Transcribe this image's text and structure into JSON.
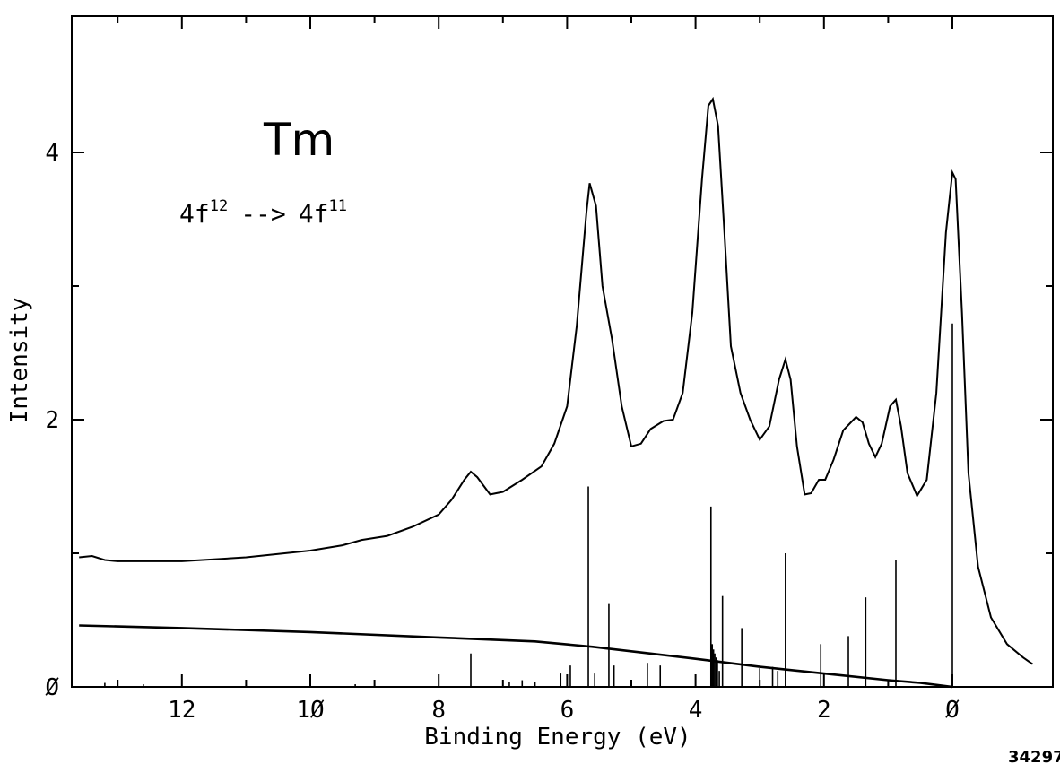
{
  "chart_data": {
    "type": "line",
    "xlabel": "Binding Energy (eV)",
    "ylabel": "Intensity",
    "xlim": [
      13.6,
      -1.4
    ],
    "ylim": [
      0,
      5.0
    ],
    "x_reversed": true,
    "x_ticks": [
      12,
      10,
      8,
      6,
      4,
      2,
      0
    ],
    "x_tick_labels": [
      "12",
      "1Ø",
      "8",
      "6",
      "4",
      "2",
      "Ø"
    ],
    "y_ticks": [
      0,
      2,
      4
    ],
    "y_tick_labels": [
      "Ø",
      "2",
      "4"
    ],
    "annotations": {
      "element": "Tm",
      "transition_from": "4f",
      "transition_from_sup": "12",
      "arrow": "-->",
      "transition_to": "4f",
      "transition_to_sup": "11"
    },
    "figure_number": "34297",
    "series": [
      {
        "kind": "spectrum",
        "points": [
          [
            13.6,
            0.97
          ],
          [
            13.4,
            0.98
          ],
          [
            13.2,
            0.95
          ],
          [
            13.0,
            0.94
          ],
          [
            12.0,
            0.94
          ],
          [
            11.0,
            0.97
          ],
          [
            10.0,
            1.02
          ],
          [
            9.5,
            1.06
          ],
          [
            9.2,
            1.1
          ],
          [
            8.8,
            1.13
          ],
          [
            8.4,
            1.2
          ],
          [
            8.0,
            1.29
          ],
          [
            7.8,
            1.4
          ],
          [
            7.6,
            1.55
          ],
          [
            7.5,
            1.61
          ],
          [
            7.4,
            1.57
          ],
          [
            7.2,
            1.44
          ],
          [
            7.0,
            1.46
          ],
          [
            6.7,
            1.55
          ],
          [
            6.4,
            1.65
          ],
          [
            6.2,
            1.82
          ],
          [
            6.0,
            2.1
          ],
          [
            5.85,
            2.7
          ],
          [
            5.7,
            3.55
          ],
          [
            5.65,
            3.77
          ],
          [
            5.55,
            3.6
          ],
          [
            5.45,
            3.0
          ],
          [
            5.3,
            2.6
          ],
          [
            5.15,
            2.1
          ],
          [
            5.0,
            1.8
          ],
          [
            4.85,
            1.82
          ],
          [
            4.7,
            1.93
          ],
          [
            4.5,
            1.99
          ],
          [
            4.35,
            2.0
          ],
          [
            4.2,
            2.2
          ],
          [
            4.05,
            2.8
          ],
          [
            3.9,
            3.8
          ],
          [
            3.8,
            4.35
          ],
          [
            3.73,
            4.4
          ],
          [
            3.65,
            4.2
          ],
          [
            3.55,
            3.4
          ],
          [
            3.45,
            2.55
          ],
          [
            3.3,
            2.2
          ],
          [
            3.15,
            2.0
          ],
          [
            3.0,
            1.85
          ],
          [
            2.85,
            1.95
          ],
          [
            2.7,
            2.3
          ],
          [
            2.6,
            2.45
          ],
          [
            2.52,
            2.3
          ],
          [
            2.42,
            1.8
          ],
          [
            2.3,
            1.44
          ],
          [
            2.2,
            1.45
          ],
          [
            2.08,
            1.55
          ],
          [
            1.98,
            1.55
          ],
          [
            1.85,
            1.7
          ],
          [
            1.7,
            1.92
          ],
          [
            1.5,
            2.02
          ],
          [
            1.4,
            1.98
          ],
          [
            1.3,
            1.82
          ],
          [
            1.2,
            1.72
          ],
          [
            1.1,
            1.82
          ],
          [
            0.97,
            2.1
          ],
          [
            0.88,
            2.15
          ],
          [
            0.8,
            1.95
          ],
          [
            0.7,
            1.6
          ],
          [
            0.55,
            1.43
          ],
          [
            0.4,
            1.55
          ],
          [
            0.25,
            2.2
          ],
          [
            0.1,
            3.4
          ],
          [
            0.0,
            3.85
          ],
          [
            -0.05,
            3.8
          ],
          [
            -0.15,
            2.8
          ],
          [
            -0.25,
            1.6
          ],
          [
            -0.4,
            0.9
          ],
          [
            -0.6,
            0.52
          ],
          [
            -0.85,
            0.32
          ],
          [
            -1.1,
            0.22
          ],
          [
            -1.25,
            0.17
          ]
        ]
      },
      {
        "kind": "background",
        "points": [
          [
            13.6,
            0.46
          ],
          [
            12.0,
            0.44
          ],
          [
            10.0,
            0.41
          ],
          [
            8.0,
            0.37
          ],
          [
            6.5,
            0.34
          ],
          [
            5.6,
            0.3
          ],
          [
            4.0,
            0.21
          ],
          [
            3.0,
            0.15
          ],
          [
            2.0,
            0.1
          ],
          [
            1.0,
            0.05
          ],
          [
            0.5,
            0.03
          ],
          [
            0.0,
            0.0
          ]
        ]
      }
    ],
    "stick_lines": [
      [
        13.2,
        0.03
      ],
      [
        12.6,
        0.02
      ],
      [
        9.3,
        0.02
      ],
      [
        7.5,
        0.25
      ],
      [
        6.9,
        0.04
      ],
      [
        6.7,
        0.05
      ],
      [
        6.5,
        0.04
      ],
      [
        6.1,
        0.1
      ],
      [
        5.95,
        0.16
      ],
      [
        5.67,
        1.5
      ],
      [
        5.57,
        0.1
      ],
      [
        5.35,
        0.62
      ],
      [
        5.27,
        0.16
      ],
      [
        4.75,
        0.18
      ],
      [
        4.55,
        0.16
      ],
      [
        3.76,
        1.35
      ],
      [
        3.74,
        0.32
      ],
      [
        3.72,
        0.28
      ],
      [
        3.7,
        0.25
      ],
      [
        3.68,
        0.22
      ],
      [
        3.66,
        0.2
      ],
      [
        3.63,
        0.12
      ],
      [
        3.58,
        0.68
      ],
      [
        3.28,
        0.44
      ],
      [
        3.0,
        0.14
      ],
      [
        2.8,
        0.15
      ],
      [
        2.72,
        0.12
      ],
      [
        2.6,
        1.0
      ],
      [
        2.05,
        0.32
      ],
      [
        1.62,
        0.38
      ],
      [
        1.35,
        0.67
      ],
      [
        0.88,
        0.95
      ],
      [
        0.0,
        2.72
      ]
    ]
  }
}
